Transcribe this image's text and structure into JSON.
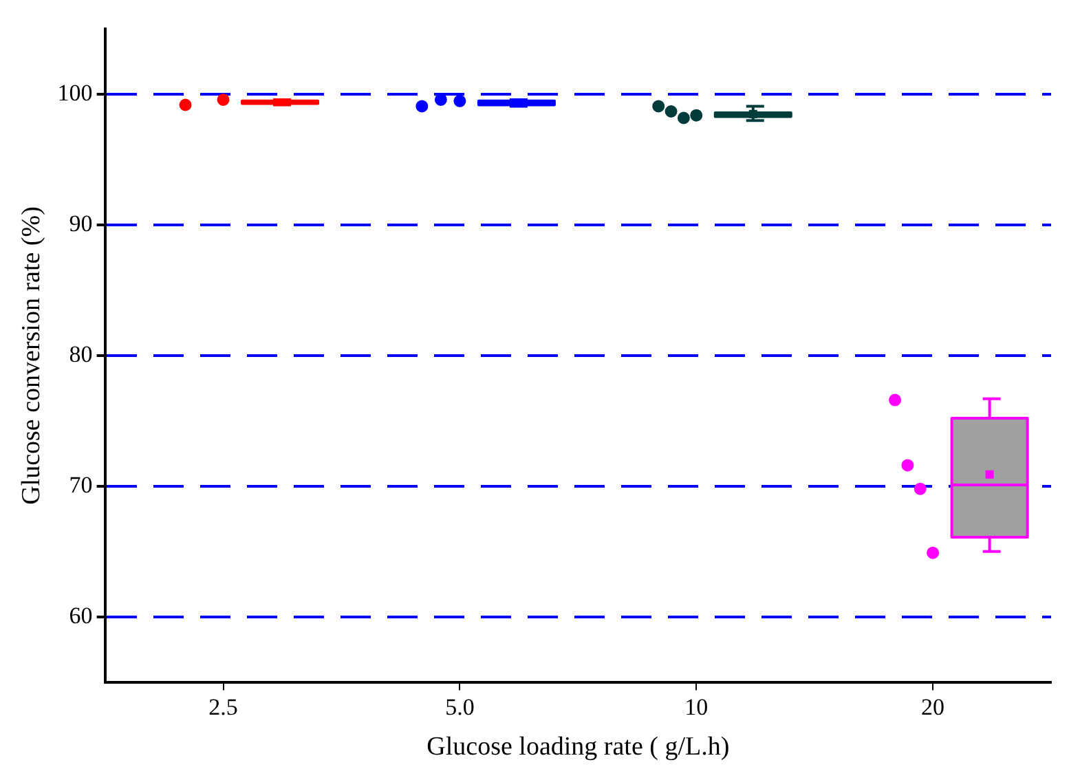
{
  "chart_data": {
    "type": "box",
    "xlabel": "Glucose loading rate ( g/L.h)",
    "ylabel": "Glucose conversion rate (%)",
    "categories": [
      "2.5",
      "5.0",
      "10",
      "20"
    ],
    "colors": [
      "#ff0000",
      "#0000ff",
      "#003c3c",
      "#a0a0a0"
    ],
    "boxes": [
      {
        "low": 99.2,
        "q1": 99.3,
        "median": 99.4,
        "q3": 99.5,
        "high": 99.6
      },
      {
        "low": 99.1,
        "q1": 99.2,
        "median": 99.3,
        "q3": 99.5,
        "high": 99.6
      },
      {
        "low": 98.0,
        "q1": 98.3,
        "median": 98.4,
        "q3": 98.6,
        "high": 99.1,
        "mean": 98.5
      },
      {
        "low": 65.0,
        "q1": 66.1,
        "median": 70.1,
        "q3": 75.2,
        "high": 76.7,
        "mean": 70.9
      }
    ],
    "series": [
      {
        "type": "scatter",
        "color": "#ff0000",
        "x": [
          "2.5",
          "2.5"
        ],
        "values": [
          99.2,
          99.6
        ]
      },
      {
        "type": "scatter",
        "color": "#0000ff",
        "x": [
          "5.0",
          "5.0",
          "5.0"
        ],
        "values": [
          99.1,
          99.6,
          99.5
        ]
      },
      {
        "type": "scatter",
        "color": "#003c3c",
        "x": [
          "10",
          "10",
          "10",
          "10"
        ],
        "values": [
          99.1,
          98.7,
          98.2,
          98.4
        ]
      },
      {
        "type": "scatter",
        "color": "#ff00ff",
        "x": [
          "20",
          "20",
          "20",
          "20"
        ],
        "values": [
          76.6,
          71.6,
          69.8,
          64.9
        ]
      }
    ],
    "ylim": [
      55,
      105
    ],
    "yticks": [
      60,
      70,
      80,
      90,
      100
    ],
    "grid": "y",
    "marker": "circle",
    "legend": false
  }
}
